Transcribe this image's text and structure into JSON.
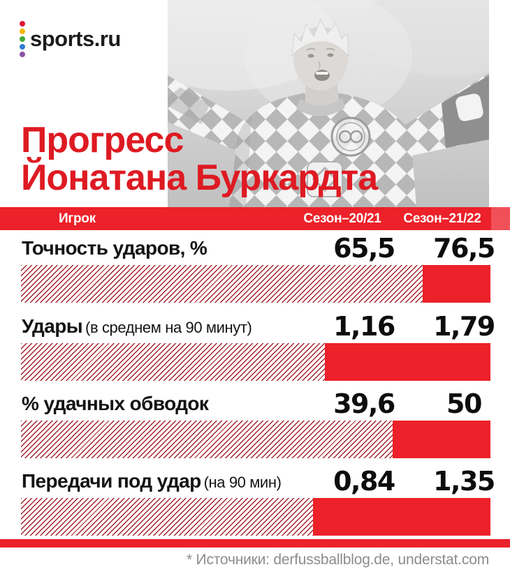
{
  "logo": {
    "text": "sports.ru",
    "dot_colors": [
      "#e31837",
      "#f6b504",
      "#44a93c",
      "#2e7fd4",
      "#8a56a4"
    ]
  },
  "photo": {
    "name": "player-celebration-photo-grayscale"
  },
  "title": {
    "line1": "Прогресс",
    "line2": "Йонатана Буркардта"
  },
  "table_header": {
    "player": "Игрок",
    "season_prev": "Сезон–20/21",
    "season_curr": "Сезон–21/22"
  },
  "rows": [
    {
      "label": "Точность ударов, %",
      "note": "",
      "prev": "65,5",
      "curr": "76,5"
    },
    {
      "label": "Удары",
      "note": "(в среднем на 90 минут)",
      "prev": "1,16",
      "curr": "1,79"
    },
    {
      "label": "% удачных обводок",
      "note": "",
      "prev": "39,6",
      "curr": "50"
    },
    {
      "label": "Передачи под удар",
      "note": "(на 90 мин)",
      "prev": "0,84",
      "curr": "1,35"
    }
  ],
  "footer": {
    "sources": "* Источники: derfussballblog.de, understat.com"
  },
  "colors": {
    "brand_red": "#de1a22",
    "bar_red": "#ec2129",
    "stripe_red": "#a5212b",
    "text_black": "#141414",
    "footer_gray": "#8c8c8c"
  },
  "chart_data": {
    "type": "bar",
    "title": "Прогресс Йонатана Буркардта",
    "categories": [
      "Точность ударов, %",
      "Удары (в среднем на 90 минут)",
      "% удачных обводок",
      "Передачи под удар (на 90 мин)"
    ],
    "series": [
      {
        "name": "Сезон–20/21",
        "values": [
          65.5,
          1.16,
          39.6,
          0.84
        ]
      },
      {
        "name": "Сезон–21/22",
        "values": [
          76.5,
          1.79,
          50,
          1.35
        ]
      }
    ],
    "encoding_note": "Полная ширина полосы = сезон-21/22; штриховка = сезон-20/21; сплошной красный справа = прирост",
    "legend": "none",
    "grid": "off"
  }
}
